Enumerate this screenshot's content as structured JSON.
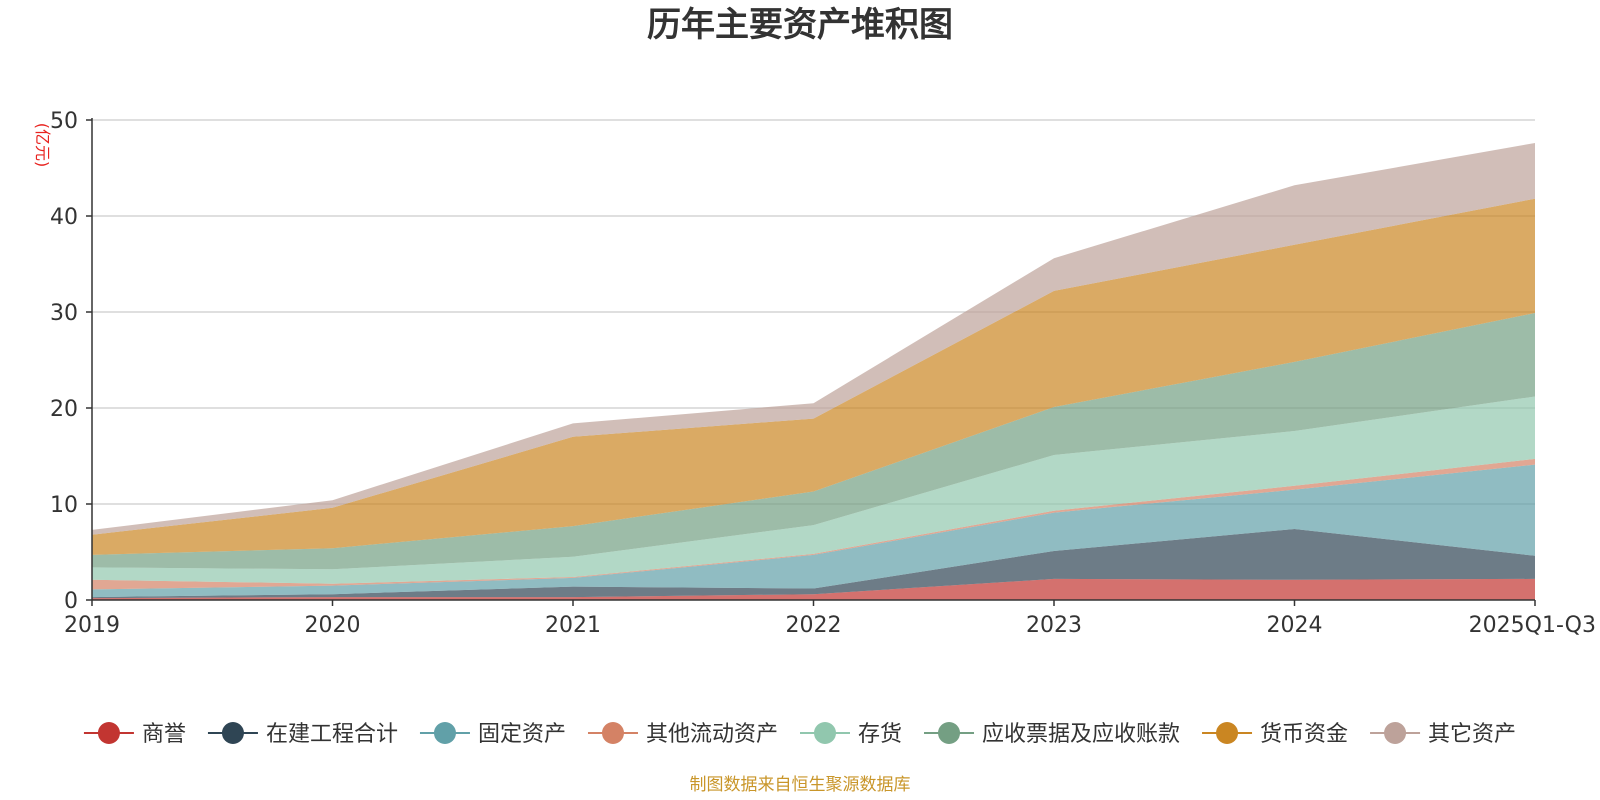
{
  "chart_data": {
    "type": "area",
    "stacked": true,
    "title": "历年主要资产堆积图",
    "ylabel": "(亿元)",
    "xlabel": "",
    "ylim": [
      0,
      50
    ],
    "yticks": [
      0,
      10,
      20,
      30,
      40,
      50
    ],
    "grid": true,
    "legend_position": "bottom",
    "categories": [
      "2019",
      "2020",
      "2021",
      "2022",
      "2023",
      "2024",
      "2025Q1-Q3"
    ],
    "series": [
      {
        "name": "商誉",
        "color": "#c23531",
        "values": [
          0.2,
          0.3,
          0.3,
          0.6,
          2.2,
          2.1,
          2.2
        ]
      },
      {
        "name": "在建工程合计",
        "color": "#2f4554",
        "values": [
          0.1,
          0.3,
          1.1,
          0.6,
          2.9,
          5.3,
          2.4
        ]
      },
      {
        "name": "固定资产",
        "color": "#61a0a8",
        "values": [
          0.8,
          0.9,
          0.9,
          3.5,
          4.0,
          4.1,
          9.5
        ]
      },
      {
        "name": "其他流动资产",
        "color": "#d48265",
        "values": [
          1.0,
          0.2,
          0.1,
          0.1,
          0.2,
          0.4,
          0.6
        ]
      },
      {
        "name": "存货",
        "color": "#91c7ae",
        "values": [
          1.3,
          1.5,
          2.1,
          3.0,
          5.8,
          5.7,
          6.5
        ]
      },
      {
        "name": "应收票据及应收账款",
        "color": "#749f83",
        "values": [
          1.3,
          2.2,
          3.2,
          3.5,
          5.0,
          7.2,
          8.7
        ]
      },
      {
        "name": "货币资金",
        "color": "#ca8622",
        "values": [
          2.1,
          4.2,
          9.3,
          7.6,
          12.1,
          12.2,
          11.9
        ]
      },
      {
        "name": "其它资产",
        "color": "#bda29a",
        "values": [
          0.5,
          0.8,
          1.4,
          1.6,
          3.4,
          6.2,
          5.8
        ]
      }
    ]
  },
  "footer": {
    "source": "制图数据来自恒生聚源数据库"
  }
}
